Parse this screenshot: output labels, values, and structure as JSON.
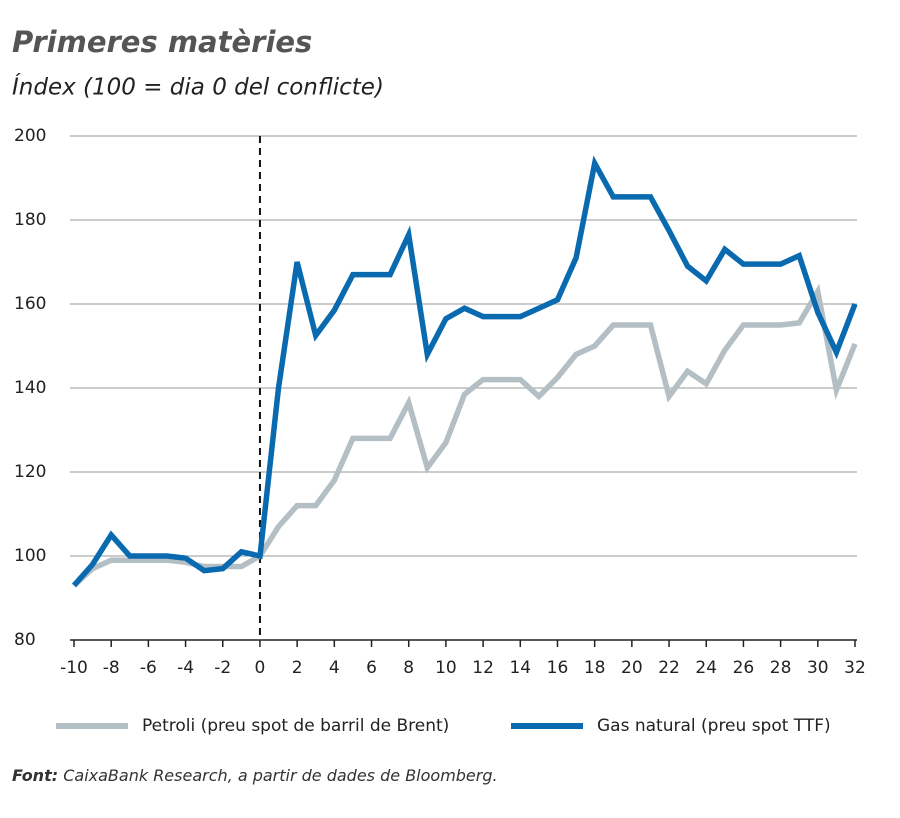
{
  "chart_data": {
    "type": "line",
    "title": "Primeres matèries",
    "subtitle": "Índex (100 = dia 0 del conflicte)",
    "x": [
      -10,
      -9,
      -8,
      -7,
      -6,
      -5,
      -4,
      -3,
      -2,
      -1,
      0,
      1,
      2,
      3,
      4,
      5,
      6,
      7,
      8,
      9,
      10,
      11,
      12,
      13,
      14,
      15,
      16,
      17,
      18,
      19,
      20,
      21,
      22,
      23,
      24,
      25,
      26,
      27,
      28,
      29,
      30,
      31,
      32
    ],
    "series": [
      {
        "name": "Petroli (preu spot de barril de Brent)",
        "color": "#b3bfc4",
        "values": [
          93,
          97,
          99,
          99,
          99,
          99,
          98.5,
          97.5,
          97.5,
          97.5,
          100,
          107,
          112,
          112,
          118,
          128,
          128,
          128,
          136.5,
          121,
          127,
          138.5,
          142,
          142,
          142,
          138,
          142.5,
          148,
          150,
          155,
          155,
          155,
          138,
          144,
          141,
          149,
          155,
          155,
          155,
          155.5,
          163,
          139.5,
          150.5
        ]
      },
      {
        "name": "Gas natural (preu spot TTF)",
        "color": "#0a6ab0",
        "values": [
          93,
          98,
          105,
          100,
          100,
          100,
          99.5,
          96.5,
          97,
          101,
          100,
          140,
          170,
          152.5,
          158.5,
          167,
          167,
          167,
          176.5,
          148,
          156.5,
          159,
          157,
          157,
          157,
          159,
          161,
          171,
          193.5,
          185.5,
          185.5,
          185.5,
          177.5,
          169,
          165.5,
          173,
          169.5,
          169.5,
          169.5,
          171.5,
          158,
          148.5,
          160
        ]
      }
    ],
    "xlim": [
      -10,
      32
    ],
    "xticks": [
      -10,
      -8,
      -6,
      -4,
      -2,
      0,
      2,
      4,
      6,
      8,
      10,
      12,
      14,
      16,
      18,
      20,
      22,
      24,
      26,
      28,
      30,
      32
    ],
    "ylim": [
      80,
      200
    ],
    "yticks": [
      80,
      100,
      120,
      140,
      160,
      180,
      200
    ],
    "grid": true,
    "event_x": 0,
    "source_label": "Font:",
    "source_text": "CaixaBank Research, a partir de dades de Bloomberg."
  }
}
